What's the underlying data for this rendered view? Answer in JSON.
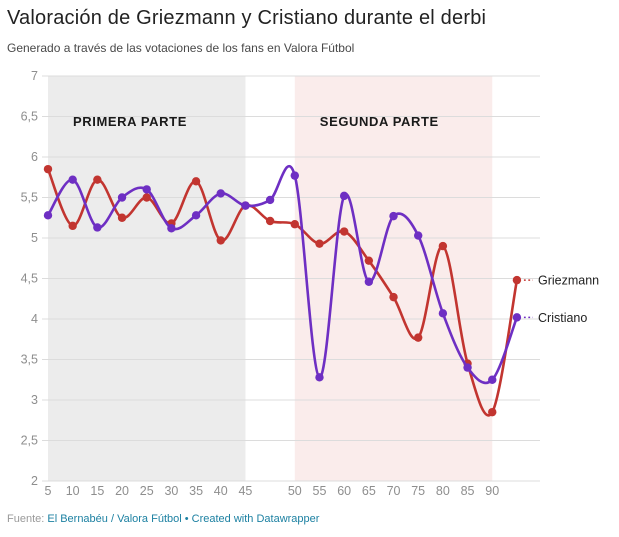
{
  "header": {
    "title": "Valoración de Griezmann y Cristiano durante el derbi",
    "subtitle": "Generado a través de las votaciones de los fans en Valora Fútbol"
  },
  "chart_data": {
    "type": "line",
    "title": "Valoración de Griezmann y Cristiano durante el derbi",
    "subtitle": "Generado a través de las votaciones de los fans en Valora Fútbol",
    "xlabel": "",
    "ylabel": "",
    "x_tick_labels": [
      "5",
      "10",
      "15",
      "20",
      "25",
      "30",
      "35",
      "40",
      "45",
      "",
      "50",
      "55",
      "60",
      "65",
      "70",
      "75",
      "80",
      "85",
      "90",
      ""
    ],
    "y_tick_labels": [
      "7",
      "6,5",
      "6",
      "5,5",
      "5",
      "4,5",
      "4",
      "3,5",
      "3",
      "2,5",
      "2"
    ],
    "ylim": [
      2,
      7
    ],
    "y_tick_step": 0.5,
    "grid": "on",
    "legend_position": "right-direct-labels",
    "series": [
      {
        "name": "Griezmann",
        "color": "#c23530",
        "values": [
          5.85,
          5.15,
          5.72,
          5.25,
          5.5,
          5.18,
          5.7,
          4.97,
          5.4,
          5.21,
          5.17,
          4.93,
          5.08,
          4.72,
          4.27,
          3.77,
          4.9,
          3.45,
          2.85,
          4.48
        ]
      },
      {
        "name": "Cristiano",
        "color": "#6e2fc3",
        "values": [
          5.28,
          5.72,
          5.13,
          5.5,
          5.6,
          5.12,
          5.28,
          5.55,
          5.4,
          5.47,
          5.77,
          3.28,
          5.52,
          4.46,
          5.27,
          5.03,
          4.07,
          3.4,
          3.25,
          4.02
        ]
      }
    ],
    "annotations": [
      {
        "label": "PRIMERA PARTE",
        "range_idx": [
          0,
          8
        ],
        "fill": "#ececec"
      },
      {
        "label": "SEGUNDA PARTE",
        "range_idx": [
          10,
          18
        ],
        "fill": "#faeceb"
      }
    ],
    "colors": {
      "gridline": "#dcdcdc",
      "axis_text": "#8e8e8e",
      "band_label_text": "#1a1a1a",
      "direct_label_text": "#222222"
    }
  },
  "footer": {
    "prefix": "Fuente: ",
    "source_link": "El Bernabéu / Valora Fútbol",
    "separator": " • ",
    "credit_link": "Created with Datawrapper"
  }
}
